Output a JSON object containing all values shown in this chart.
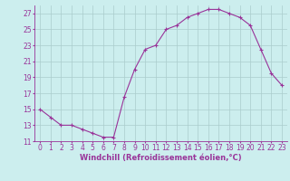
{
  "x": [
    0,
    1,
    2,
    3,
    4,
    5,
    6,
    7,
    8,
    9,
    10,
    11,
    12,
    13,
    14,
    15,
    16,
    17,
    18,
    19,
    20,
    21,
    22,
    23
  ],
  "y": [
    15,
    14,
    13,
    13,
    12.5,
    12,
    11.5,
    11.5,
    16.5,
    20,
    22.5,
    23,
    25,
    25.5,
    26.5,
    27,
    27.5,
    27.5,
    27,
    26.5,
    25.5,
    22.5,
    19.5,
    18
  ],
  "line_color": "#993399",
  "marker": "+",
  "bg_color": "#cceeee",
  "grid_color": "#aacccc",
  "xlabel": "Windchill (Refroidissement éolien,°C)",
  "xlabel_fontsize": 6,
  "tick_fontsize": 5.5,
  "ylim": [
    11,
    28
  ],
  "yticks": [
    11,
    13,
    15,
    17,
    19,
    21,
    23,
    25,
    27
  ],
  "xlim": [
    -0.5,
    23.5
  ],
  "xticks": [
    0,
    1,
    2,
    3,
    4,
    5,
    6,
    7,
    8,
    9,
    10,
    11,
    12,
    13,
    14,
    15,
    16,
    17,
    18,
    19,
    20,
    21,
    22,
    23
  ]
}
